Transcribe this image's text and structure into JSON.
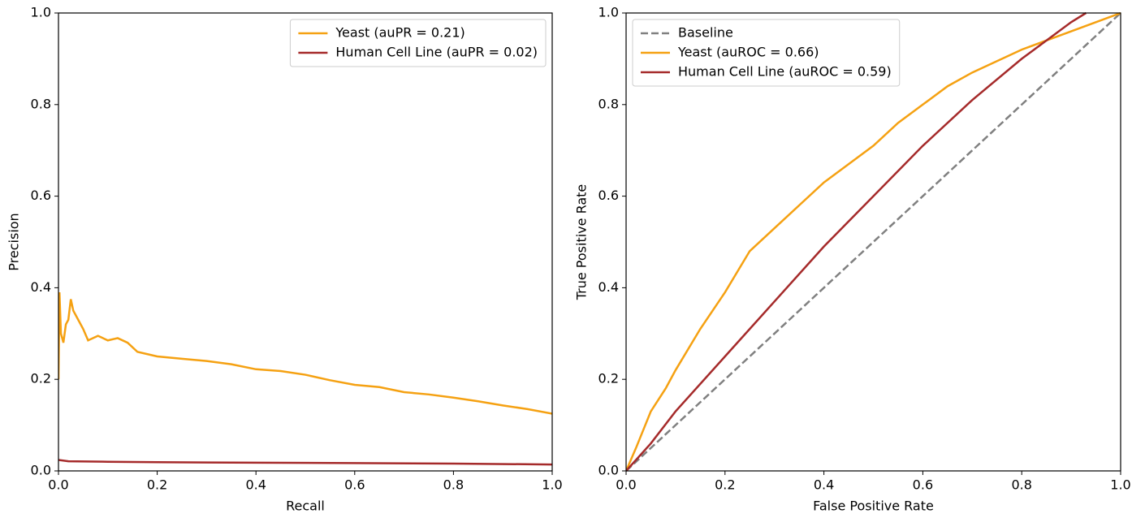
{
  "chart_data": [
    {
      "type": "line",
      "xlabel": "Recall",
      "ylabel": "Precision",
      "xlim": [
        0,
        1
      ],
      "ylim": [
        0,
        1
      ],
      "xticks": [
        {
          "value": 0,
          "label": "0.0"
        },
        0.2,
        0.4,
        0.6,
        0.8,
        {
          "value": 1,
          "label": "1.0"
        }
      ],
      "yticks": [
        {
          "value": 0,
          "label": "0.0"
        },
        0.2,
        0.4,
        0.6,
        0.8,
        {
          "value": 1,
          "label": "1.0"
        }
      ],
      "legend": "upper right",
      "series": [
        {
          "name": "Yeast (auPR = 0.21)",
          "color": "#f5a112",
          "linestyle": "solid",
          "x": [
            0,
            0.002,
            0.005,
            0.01,
            0.015,
            0.02,
            0.025,
            0.03,
            0.04,
            0.05,
            0.06,
            0.08,
            0.1,
            0.12,
            0.14,
            0.16,
            0.2,
            0.25,
            0.3,
            0.35,
            0.4,
            0.45,
            0.5,
            0.55,
            0.6,
            0.65,
            0.7,
            0.75,
            0.8,
            0.85,
            0.9,
            0.95,
            1.0
          ],
          "values": [
            0.2,
            0.39,
            0.3,
            0.28,
            0.32,
            0.33,
            0.375,
            0.35,
            0.33,
            0.31,
            0.285,
            0.295,
            0.285,
            0.29,
            0.28,
            0.26,
            0.25,
            0.245,
            0.24,
            0.233,
            0.222,
            0.218,
            0.21,
            0.198,
            0.188,
            0.183,
            0.172,
            0.167,
            0.16,
            0.152,
            0.143,
            0.135,
            0.125
          ]
        },
        {
          "name": "Human Cell Line (auPR = 0.02)",
          "color": "#a52a2a",
          "linestyle": "solid",
          "x": [
            0,
            0.02,
            0.1,
            0.2,
            0.4,
            0.6,
            0.8,
            1.0
          ],
          "values": [
            0.024,
            0.021,
            0.02,
            0.019,
            0.018,
            0.017,
            0.016,
            0.014
          ]
        }
      ]
    },
    {
      "type": "line",
      "xlabel": "False Positive Rate",
      "ylabel": "True Positive Rate",
      "xlim": [
        0,
        1
      ],
      "ylim": [
        0,
        1
      ],
      "xticks": [
        {
          "value": 0,
          "label": "0.0"
        },
        0.2,
        0.4,
        0.6,
        0.8,
        {
          "value": 1,
          "label": "1.0"
        }
      ],
      "yticks": [
        {
          "value": 0,
          "label": "0.0"
        },
        0.2,
        0.4,
        0.6,
        0.8,
        {
          "value": 1,
          "label": "1.0"
        }
      ],
      "legend": "upper left",
      "series": [
        {
          "name": "Baseline",
          "color": "#808080",
          "linestyle": "dashed",
          "x": [
            0,
            1
          ],
          "values": [
            0,
            1
          ]
        },
        {
          "name": "Yeast (auROC = 0.66)",
          "color": "#f5a112",
          "linestyle": "solid",
          "x": [
            0,
            0.02,
            0.05,
            0.08,
            0.1,
            0.15,
            0.2,
            0.25,
            0.3,
            0.35,
            0.4,
            0.45,
            0.5,
            0.55,
            0.6,
            0.65,
            0.7,
            0.75,
            0.8,
            0.85,
            0.9,
            0.95,
            1
          ],
          "values": [
            0,
            0.05,
            0.13,
            0.18,
            0.22,
            0.31,
            0.39,
            0.48,
            0.53,
            0.58,
            0.63,
            0.67,
            0.71,
            0.76,
            0.8,
            0.84,
            0.87,
            0.895,
            0.92,
            0.94,
            0.96,
            0.98,
            1
          ]
        },
        {
          "name": "Human Cell Line (auROC = 0.59)",
          "color": "#a52a2a",
          "linestyle": "solid",
          "x": [
            0,
            0.05,
            0.1,
            0.2,
            0.3,
            0.4,
            0.5,
            0.6,
            0.7,
            0.8,
            0.9,
            0.93
          ],
          "values": [
            0,
            0.06,
            0.13,
            0.25,
            0.37,
            0.49,
            0.6,
            0.71,
            0.81,
            0.9,
            0.98,
            1.0
          ]
        }
      ]
    }
  ]
}
